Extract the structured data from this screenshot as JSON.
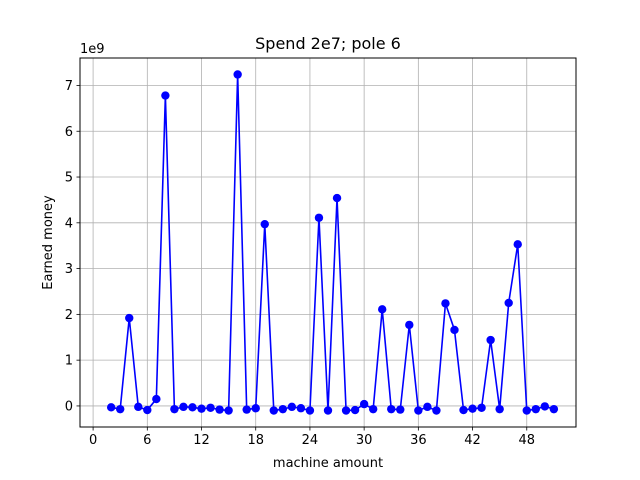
{
  "chart_data": {
    "type": "line",
    "title": "Spend 2e7; pole 6",
    "xlabel": "machine amount",
    "ylabel": "Earned money",
    "y_offset_label": "1e9",
    "y_multiplier": 1000000000,
    "xlim": [
      -1.45,
      53.45
    ],
    "ylim": [
      -0.46,
      7.6
    ],
    "x_ticks": [
      0,
      6,
      12,
      18,
      24,
      30,
      36,
      42,
      48
    ],
    "y_ticks": [
      0,
      1,
      2,
      3,
      4,
      5,
      6,
      7
    ],
    "grid": true,
    "series": [
      {
        "color": "#0000ff",
        "marker": "circle",
        "x": [
          2,
          3,
          4,
          5,
          6,
          7,
          8,
          9,
          10,
          11,
          12,
          13,
          14,
          15,
          16,
          17,
          18,
          19,
          20,
          21,
          22,
          23,
          24,
          25,
          26,
          27,
          28,
          29,
          30,
          31,
          32,
          33,
          34,
          35,
          36,
          37,
          38,
          39,
          40,
          41,
          42,
          43,
          44,
          45,
          46,
          47,
          48,
          49,
          50,
          51
        ],
        "y": [
          -0.03,
          -0.07,
          1.92,
          -0.02,
          -0.09,
          0.15,
          6.78,
          -0.07,
          -0.02,
          -0.03,
          -0.06,
          -0.04,
          -0.08,
          -0.1,
          7.24,
          -0.08,
          -0.05,
          3.97,
          -0.1,
          -0.07,
          -0.02,
          -0.05,
          -0.1,
          4.11,
          -0.1,
          4.54,
          -0.1,
          -0.09,
          0.04,
          -0.07,
          2.11,
          -0.07,
          -0.08,
          1.77,
          -0.1,
          -0.02,
          -0.1,
          2.24,
          1.66,
          -0.09,
          -0.06,
          -0.04,
          1.44,
          -0.07,
          2.25,
          3.53,
          -0.1,
          -0.07,
          -0.01,
          -0.07
        ]
      }
    ]
  }
}
